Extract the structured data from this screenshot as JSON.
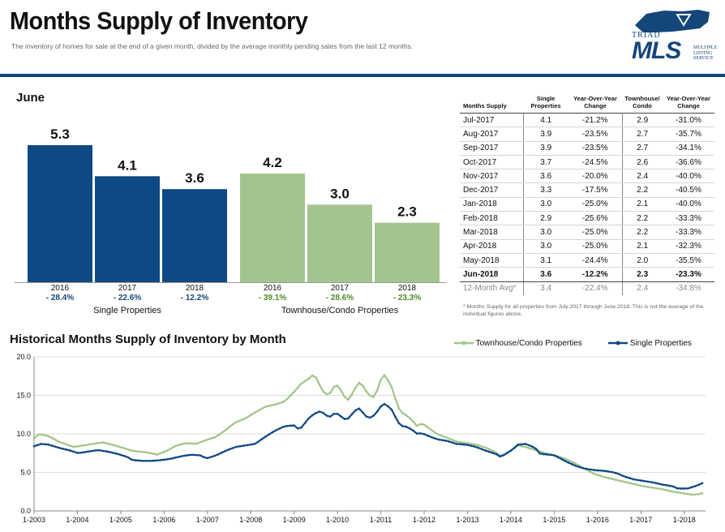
{
  "header": {
    "title": "Months Supply of Inventory",
    "subtitle": "The inventory of homes for sale at the end of a given month, divided by the average monthly pending sales from the last 12 months."
  },
  "logo": {
    "top_text": "TRIAD",
    "main_text": "MLS",
    "tag_line1": "MULTIPLE",
    "tag_line2": "LISTING",
    "tag_line3": "SERVICE"
  },
  "colors": {
    "single": "#0f4985",
    "townhouse": "#a3c58d",
    "header_rule": "#14467a",
    "positive_pct": "#14467a",
    "townhouse_pct": "#4e8a2c"
  },
  "june_section": {
    "heading": "June",
    "groups": [
      {
        "label": "Single Properties",
        "bars": [
          {
            "year": "2016",
            "value": 5.3,
            "value_label": "5.3",
            "change": "- 28.4%"
          },
          {
            "year": "2017",
            "value": 4.1,
            "value_label": "4.1",
            "change": "- 22.6%"
          },
          {
            "year": "2018",
            "value": 3.6,
            "value_label": "3.6",
            "change": "- 12.2%"
          }
        ]
      },
      {
        "label": "Townhouse/Condo Properties",
        "bars": [
          {
            "year": "2016",
            "value": 4.2,
            "value_label": "4.2",
            "change": "- 39.1%"
          },
          {
            "year": "2017",
            "value": 3.0,
            "value_label": "3.0",
            "change": "- 28.6%"
          },
          {
            "year": "2018",
            "value": 2.3,
            "value_label": "2.3",
            "change": "- 23.3%"
          }
        ]
      }
    ]
  },
  "monthly_table": {
    "headers": [
      "Months Supply",
      "Single Properties",
      "Year-Over-Year Change",
      "Townhouse/ Condo",
      "Year-Over-Year Change"
    ],
    "rows": [
      [
        "Jul-2017",
        "4.1",
        "-21.2%",
        "2.9",
        "-31.0%"
      ],
      [
        "Aug-2017",
        "3.9",
        "-23.5%",
        "2.7",
        "-35.7%"
      ],
      [
        "Sep-2017",
        "3.9",
        "-23.5%",
        "2.7",
        "-34.1%"
      ],
      [
        "Oct-2017",
        "3.7",
        "-24.5%",
        "2.6",
        "-36.6%"
      ],
      [
        "Nov-2017",
        "3.6",
        "-20.0%",
        "2.4",
        "-40.0%"
      ],
      [
        "Dec-2017",
        "3.3",
        "-17.5%",
        "2.2",
        "-40.5%"
      ],
      [
        "Jan-2018",
        "3.0",
        "-25.0%",
        "2.1",
        "-40.0%"
      ],
      [
        "Feb-2018",
        "2.9",
        "-25.6%",
        "2.2",
        "-33.3%"
      ],
      [
        "Mar-2018",
        "3.0",
        "-25.0%",
        "2.2",
        "-33.3%"
      ],
      [
        "Apr-2018",
        "3.0",
        "-25.0%",
        "2.1",
        "-32.3%"
      ],
      [
        "May-2018",
        "3.1",
        "-24.4%",
        "2.0",
        "-35.5%"
      ],
      [
        "Jun-2018",
        "3.6",
        "-12.2%",
        "2.3",
        "-23.3%"
      ]
    ],
    "avg_row": [
      "12-Month Avg*",
      "3.4",
      "-22.4%",
      "2.4",
      "-34.8%"
    ],
    "footnote": "* Months Supply for all properties from July 2017 through June 2018. This is not the average of the individual figures above."
  },
  "chart_data": [
    {
      "type": "bar",
      "title": "June",
      "categories": [
        "2016",
        "2017",
        "2018"
      ],
      "series": [
        {
          "name": "Single Properties",
          "values": [
            5.3,
            4.1,
            3.6
          ],
          "changes": [
            "- 28.4%",
            "- 22.6%",
            "- 12.2%"
          ]
        },
        {
          "name": "Townhouse/Condo Properties",
          "values": [
            4.2,
            3.0,
            2.3
          ],
          "changes": [
            "- 39.1%",
            "- 28.6%",
            "- 23.3%"
          ]
        }
      ]
    },
    {
      "type": "line",
      "title": "Historical Months Supply of Inventory by Month",
      "xlabel": "",
      "ylabel": "",
      "ylim": [
        0,
        20
      ],
      "yticks": [
        "0.0",
        "5.0",
        "10.0",
        "15.0",
        "20.0"
      ],
      "xticks": [
        "1-2003",
        "1-2004",
        "1-2005",
        "1-2006",
        "1-2007",
        "1-2008",
        "1-2009",
        "1-2010",
        "1-2011",
        "1-2012",
        "1-2013",
        "1-2014",
        "1-2015",
        "1-2016",
        "1-2017",
        "1-2018"
      ],
      "x_start": "1-2003",
      "x_end": "6-2018",
      "grid": true,
      "legend": "top-right",
      "series": [
        {
          "name": "Townhouse/Condo Properties",
          "color": "#a3c58d",
          "anchors": [
            [
              0,
              9.4
            ],
            [
              2,
              10.0
            ],
            [
              6,
              9.7
            ],
            [
              10,
              9.0
            ],
            [
              16,
              8.3
            ],
            [
              22,
              8.6
            ],
            [
              28,
              8.9
            ],
            [
              34,
              8.4
            ],
            [
              40,
              7.8
            ],
            [
              46,
              7.6
            ],
            [
              50,
              7.3
            ],
            [
              54,
              7.8
            ],
            [
              58,
              8.5
            ],
            [
              62,
              8.8
            ],
            [
              66,
              8.7
            ],
            [
              70,
              9.2
            ],
            [
              74,
              9.6
            ],
            [
              78,
              10.5
            ],
            [
              82,
              11.5
            ],
            [
              86,
              12.0
            ],
            [
              90,
              12.8
            ],
            [
              94,
              13.5
            ],
            [
              98,
              13.8
            ],
            [
              102,
              14.2
            ],
            [
              106,
              15.5
            ],
            [
              109,
              16.6
            ],
            [
              112,
              17.2
            ],
            [
              114,
              17.8
            ],
            [
              116,
              16.5
            ],
            [
              118,
              15.3
            ],
            [
              120,
              15.0
            ],
            [
              122,
              16.1
            ],
            [
              124,
              16.3
            ],
            [
              126,
              14.9
            ],
            [
              128,
              14.4
            ],
            [
              130,
              15.5
            ],
            [
              132,
              16.7
            ],
            [
              134,
              16.2
            ],
            [
              136,
              15.1
            ],
            [
              138,
              14.7
            ],
            [
              140,
              15.8
            ],
            [
              142,
              17.9
            ],
            [
              144,
              17.0
            ],
            [
              146,
              15.8
            ],
            [
              148,
              13.5
            ],
            [
              150,
              12.7
            ],
            [
              152,
              12.3
            ],
            [
              154,
              11.7
            ],
            [
              156,
              11.0
            ],
            [
              158,
              11.4
            ],
            [
              160,
              10.9
            ],
            [
              164,
              10.0
            ],
            [
              168,
              9.5
            ],
            [
              172,
              9.0
            ],
            [
              176,
              8.8
            ],
            [
              180,
              8.6
            ],
            [
              184,
              8.2
            ],
            [
              188,
              7.6
            ],
            [
              190,
              7.1
            ],
            [
              194,
              7.8
            ],
            [
              197,
              8.5
            ],
            [
              200,
              8.3
            ],
            [
              204,
              7.9
            ],
            [
              208,
              7.5
            ],
            [
              212,
              7.2
            ],
            [
              216,
              6.8
            ],
            [
              220,
              6.2
            ],
            [
              224,
              5.5
            ],
            [
              228,
              4.8
            ],
            [
              232,
              4.4
            ],
            [
              236,
              4.1
            ],
            [
              240,
              3.8
            ],
            [
              244,
              3.5
            ],
            [
              248,
              3.2
            ],
            [
              252,
              3.0
            ],
            [
              256,
              2.8
            ],
            [
              260,
              2.5
            ],
            [
              264,
              2.3
            ],
            [
              268,
              2.1
            ],
            [
              271,
              2.2
            ],
            [
              272,
              2.3
            ]
          ]
        },
        {
          "name": "Single Properties",
          "color": "#0f4985",
          "anchors": [
            [
              0,
              8.4
            ],
            [
              3,
              8.7
            ],
            [
              6,
              8.6
            ],
            [
              10,
              8.2
            ],
            [
              14,
              7.9
            ],
            [
              18,
              7.5
            ],
            [
              22,
              7.7
            ],
            [
              26,
              7.9
            ],
            [
              30,
              7.7
            ],
            [
              34,
              7.4
            ],
            [
              38,
              7.0
            ],
            [
              40,
              6.6
            ],
            [
              44,
              6.5
            ],
            [
              48,
              6.5
            ],
            [
              52,
              6.6
            ],
            [
              56,
              6.8
            ],
            [
              60,
              7.1
            ],
            [
              64,
              7.3
            ],
            [
              68,
              7.2
            ],
            [
              70,
              6.8
            ],
            [
              74,
              7.2
            ],
            [
              78,
              7.8
            ],
            [
              82,
              8.3
            ],
            [
              86,
              8.5
            ],
            [
              90,
              8.7
            ],
            [
              94,
              9.6
            ],
            [
              98,
              10.4
            ],
            [
              102,
              11.0
            ],
            [
              106,
              11.1
            ],
            [
              108,
              10.5
            ],
            [
              110,
              11.3
            ],
            [
              112,
              12.1
            ],
            [
              114,
              12.6
            ],
            [
              116,
              12.9
            ],
            [
              118,
              12.7
            ],
            [
              120,
              12.1
            ],
            [
              122,
              12.6
            ],
            [
              124,
              12.6
            ],
            [
              126,
              11.9
            ],
            [
              128,
              12.0
            ],
            [
              130,
              12.8
            ],
            [
              132,
              13.4
            ],
            [
              134,
              12.7
            ],
            [
              136,
              12.0
            ],
            [
              138,
              12.3
            ],
            [
              140,
              13.0
            ],
            [
              142,
              14.0
            ],
            [
              144,
              13.6
            ],
            [
              146,
              13.0
            ],
            [
              148,
              11.5
            ],
            [
              150,
              11.0
            ],
            [
              152,
              10.9
            ],
            [
              154,
              10.5
            ],
            [
              156,
              10.0
            ],
            [
              158,
              10.1
            ],
            [
              160,
              9.8
            ],
            [
              164,
              9.3
            ],
            [
              168,
              9.1
            ],
            [
              172,
              8.7
            ],
            [
              176,
              8.6
            ],
            [
              180,
              8.3
            ],
            [
              184,
              7.8
            ],
            [
              188,
              7.4
            ],
            [
              190,
              7.0
            ],
            [
              194,
              7.8
            ],
            [
              197,
              8.6
            ],
            [
              200,
              8.7
            ],
            [
              204,
              8.2
            ],
            [
              206,
              7.4
            ],
            [
              210,
              7.3
            ],
            [
              212,
              7.2
            ],
            [
              216,
              6.5
            ],
            [
              220,
              5.9
            ],
            [
              224,
              5.5
            ],
            [
              228,
              5.3
            ],
            [
              232,
              5.2
            ],
            [
              236,
              5.0
            ],
            [
              238,
              4.8
            ],
            [
              240,
              4.5
            ],
            [
              244,
              4.1
            ],
            [
              248,
              3.9
            ],
            [
              252,
              3.7
            ],
            [
              256,
              3.4
            ],
            [
              260,
              3.2
            ],
            [
              262,
              2.9
            ],
            [
              266,
              2.9
            ],
            [
              270,
              3.3
            ],
            [
              272,
              3.6
            ]
          ]
        }
      ]
    }
  ]
}
